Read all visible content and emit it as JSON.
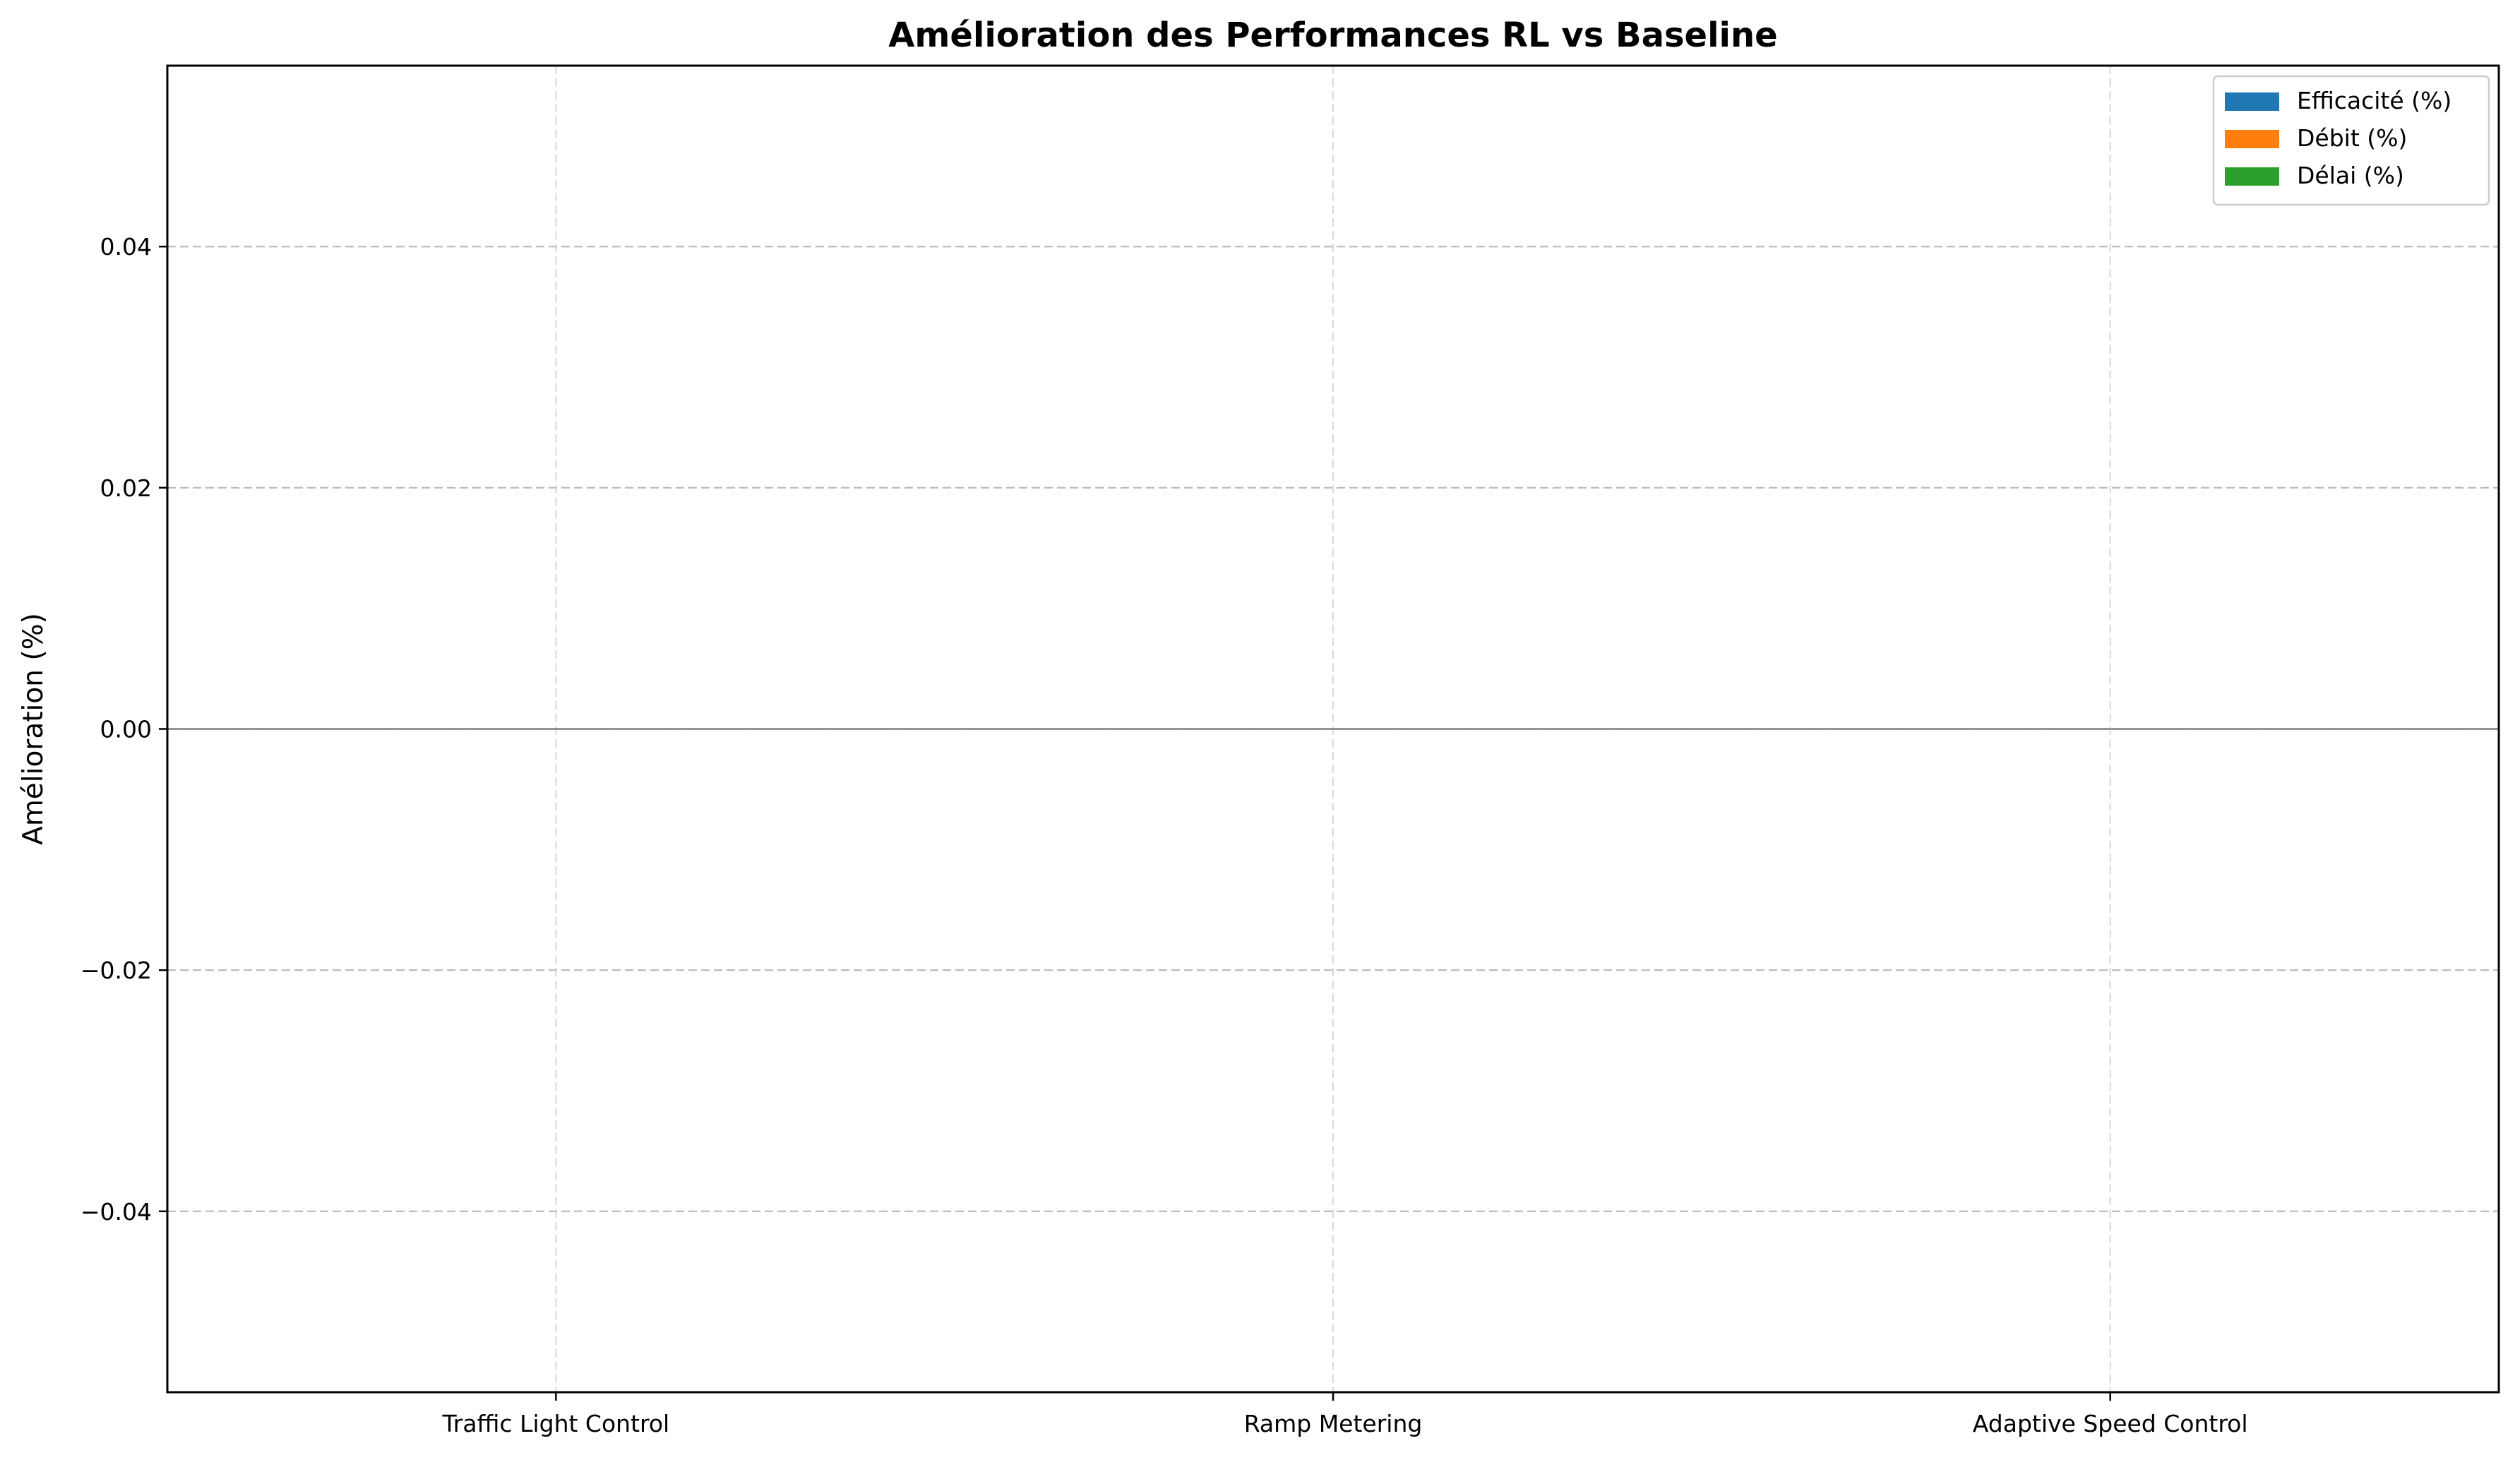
{
  "chart_data": {
    "type": "bar",
    "title": "Amélioration des Performances RL vs Baseline",
    "xlabel": "",
    "ylabel": "Amélioration (%)",
    "categories": [
      "Traffic Light Control",
      "Ramp Metering",
      "Adaptive Speed Control"
    ],
    "series": [
      {
        "name": "Efficacité (%)",
        "values": [
          0,
          0,
          0
        ],
        "color": "#1f77b4"
      },
      {
        "name": "Débit (%)",
        "values": [
          0,
          0,
          0
        ],
        "color": "#ff7f0e"
      },
      {
        "name": "Délai (%)",
        "values": [
          0,
          0,
          0
        ],
        "color": "#2ca02c"
      }
    ],
    "ylim": [
      -0.055,
      0.055
    ],
    "yticks": [
      -0.04,
      -0.02,
      0.0,
      0.02,
      0.04
    ],
    "ytick_labels": [
      "−0.04",
      "−0.02",
      "0.00",
      "0.02",
      "0.04"
    ],
    "grid": true,
    "zero_line": true,
    "legend_position": "top-right"
  }
}
